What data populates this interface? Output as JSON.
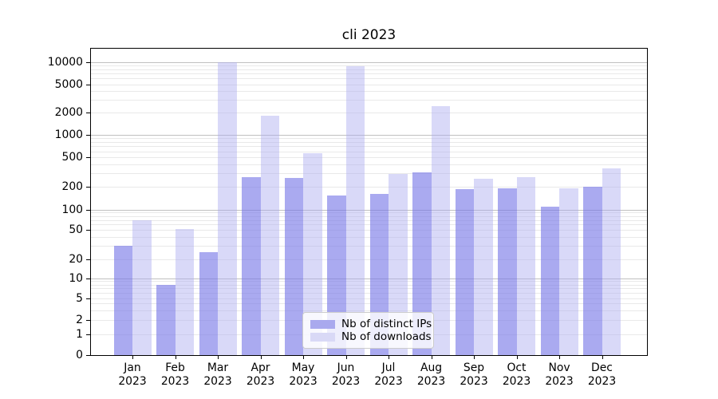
{
  "chart": {
    "title": "cli 2023",
    "legend": {
      "items": [
        {
          "label": "Nb of distinct IPs",
          "swatch_color": "#a9a9ee"
        },
        {
          "label": "Nb of downloads",
          "swatch_color": "#d9d9f6"
        }
      ],
      "position": "lower center"
    }
  },
  "chart_data": {
    "type": "bar",
    "title": "cli 2023",
    "categories": [
      "Jan 2023",
      "Feb 2023",
      "Mar 2023",
      "Apr 2023",
      "May 2023",
      "Jun 2023",
      "Jul 2023",
      "Aug 2023",
      "Sep 2023",
      "Oct 2023",
      "Nov 2023",
      "Dec 2023"
    ],
    "x_tick_month": [
      "Jan",
      "Feb",
      "Mar",
      "Apr",
      "May",
      "Jun",
      "Jul",
      "Aug",
      "Sep",
      "Oct",
      "Nov",
      "Dec"
    ],
    "x_tick_year": "2023",
    "series": [
      {
        "name": "Nb of distinct IPs",
        "color": "rgba(118,118,231,0.62)",
        "legend_color": "#a9a9ee",
        "values": [
          30,
          8,
          25,
          265,
          262,
          152,
          160,
          310,
          184,
          189,
          108,
          199
        ]
      },
      {
        "name": "Nb of downloads",
        "color": "rgba(171,171,239,0.45)",
        "legend_color": "#d9d9f6",
        "values": [
          70,
          51,
          10000,
          1800,
          560,
          8700,
          295,
          2450,
          255,
          265,
          190,
          355
        ]
      }
    ],
    "y_axis": {
      "scale": "symlog",
      "ticks": [
        0,
        1,
        2,
        5,
        10,
        20,
        50,
        100,
        200,
        500,
        1000,
        2000,
        5000,
        10000
      ],
      "range": [
        0,
        13000
      ]
    },
    "x_axis": {
      "label": "",
      "ticks_per_month": true
    },
    "ylabel": "",
    "xlabel": "",
    "grid": "horizontal, log major + minor",
    "legend_position": "lower center"
  }
}
